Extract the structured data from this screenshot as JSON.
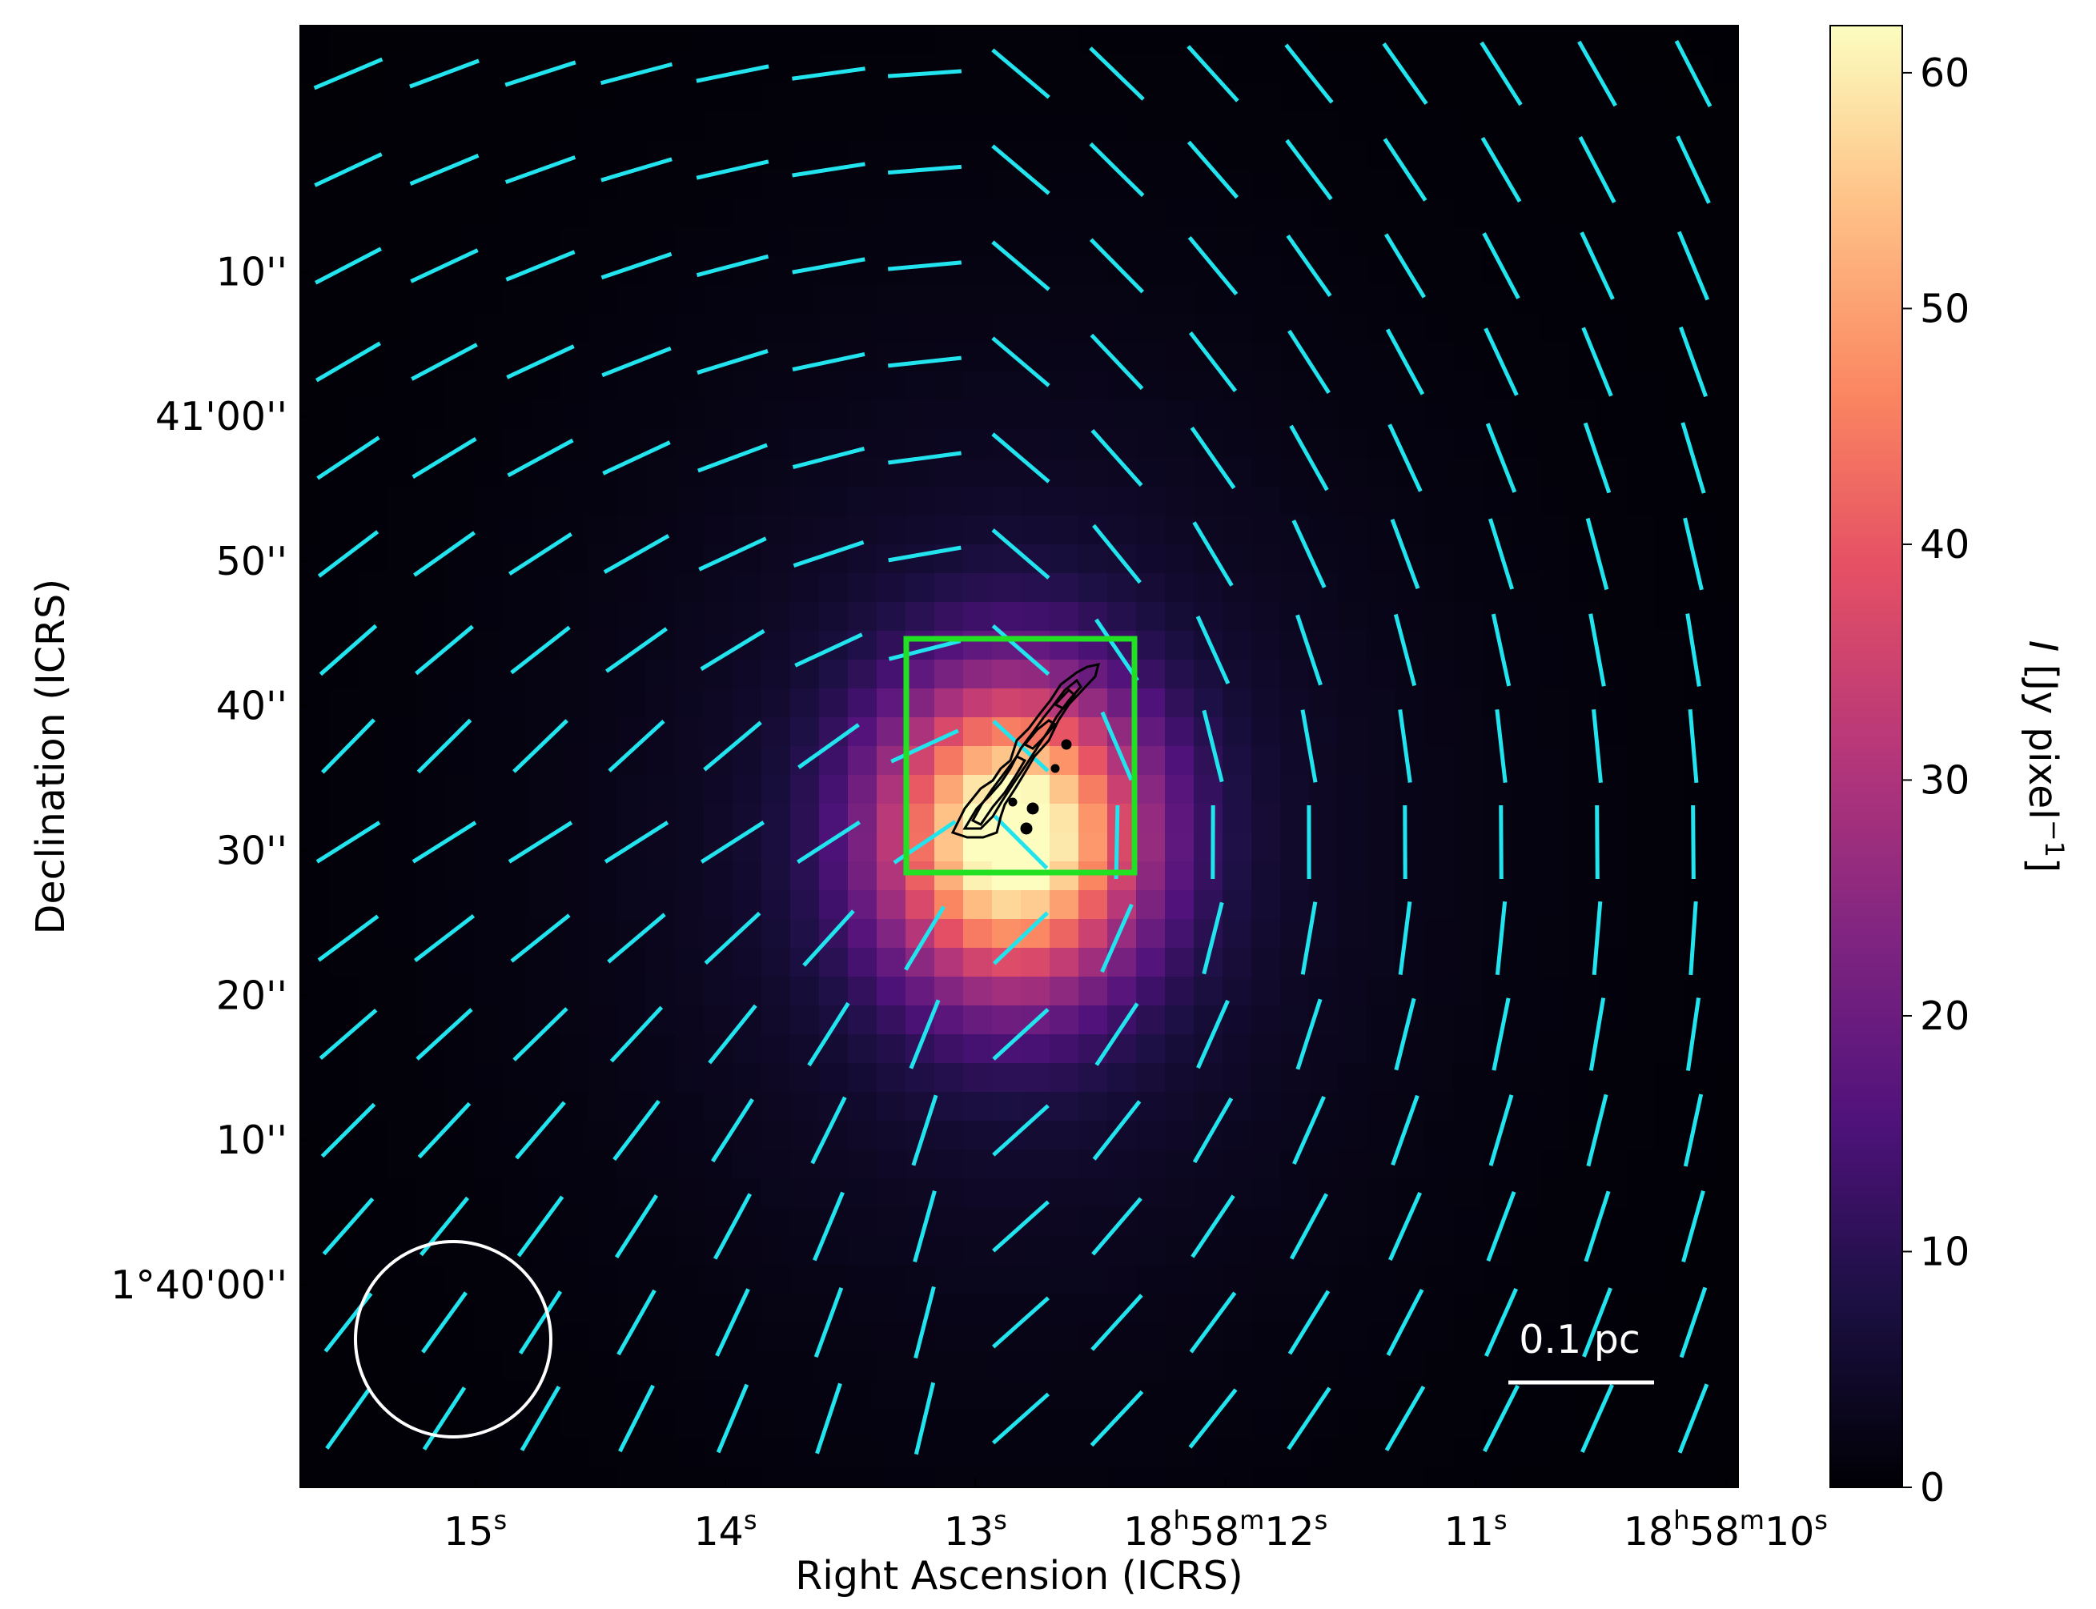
{
  "chart_data": {
    "type": "heatmap",
    "description_type": "polarization map",
    "xlabel": "Right Ascension (ICRS)",
    "ylabel": "Declination (ICRS)",
    "colorbar": {
      "label": "I [Jy pixel⁻¹]",
      "label_parts": [
        "I",
        " [Jy pixel",
        "−1",
        "]"
      ],
      "range": [
        0,
        62
      ],
      "ticks": [
        "0",
        "10",
        "20",
        "30",
        "40",
        "50",
        "60"
      ],
      "tick_values": [
        0,
        10,
        20,
        30,
        40,
        50,
        60
      ],
      "colormap": "magma"
    },
    "x_ticks": [
      {
        "label": [
          "15",
          "s"
        ],
        "ra_s": 15
      },
      {
        "label": [
          "14",
          "s"
        ],
        "ra_s": 14
      },
      {
        "label": [
          "13",
          "s"
        ],
        "ra_s": 13
      },
      {
        "label": [
          "18",
          "h",
          "58",
          "m",
          "12",
          "s"
        ],
        "ra_s": 12
      },
      {
        "label": [
          "11",
          "s"
        ],
        "ra_s": 11
      },
      {
        "label": [
          "18",
          "h",
          "58",
          "m",
          "10",
          "s"
        ],
        "ra_s": 10
      }
    ],
    "y_ticks": [
      {
        "label": "10''",
        "dec_arcsec": 70
      },
      {
        "label": "41'00''",
        "dec_arcsec": 60
      },
      {
        "label": "50''",
        "dec_arcsec": 50
      },
      {
        "label": "40''",
        "dec_arcsec": 40
      },
      {
        "label": "30''",
        "dec_arcsec": 30
      },
      {
        "label": "20''",
        "dec_arcsec": 20
      },
      {
        "label": "10''",
        "dec_arcsec": 10
      },
      {
        "label": "1°40'00''",
        "dec_arcsec": 0
      }
    ],
    "xlim_ra_s": [
      15.7,
      9.95
    ],
    "ylim_dec_arcsec_offset_from_1d40m00s": [
      -14,
      87
    ],
    "intensity_peak": {
      "ra_s": 12.85,
      "dec_arcsec": 31,
      "value": 61
    },
    "scalebar": {
      "label": "0.1 pc"
    },
    "beam": {
      "shape": "circle",
      "color": "#ffffff"
    },
    "inset_box": {
      "color": "#22e022",
      "ra_s_range": [
        13.55,
        12.65
      ],
      "dec_arcsec_range": [
        28,
        44
      ]
    },
    "vector_color": "#22e4ee",
    "contour_color": "#000000"
  }
}
